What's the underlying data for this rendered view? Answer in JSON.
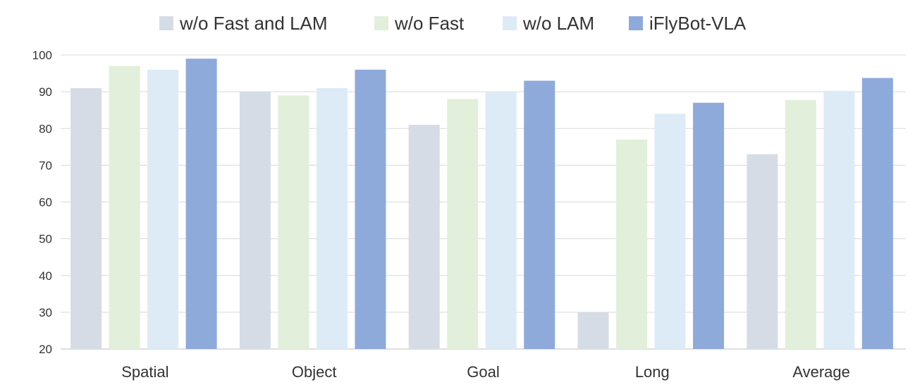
{
  "chart_data": {
    "type": "bar",
    "categories": [
      "Spatial",
      "Object",
      "Goal",
      "Long",
      "Average"
    ],
    "series": [
      {
        "name": "w/o Fast and LAM",
        "color": "#d6dce6",
        "values": [
          91,
          90,
          81,
          30,
          73
        ]
      },
      {
        "name": "w/o Fast",
        "color": "#e2efda",
        "values": [
          97,
          89,
          88,
          77,
          87.75
        ]
      },
      {
        "name": "w/o LAM",
        "color": "#ddebf7",
        "values": [
          96,
          91,
          90,
          84,
          90.25
        ]
      },
      {
        "name": "iFlyBot-VLA",
        "color": "#8eaadb",
        "values": [
          99,
          96,
          93,
          87,
          93.75
        ]
      }
    ],
    "ylim": [
      20,
      100
    ],
    "yticks": [
      20,
      30,
      40,
      50,
      60,
      70,
      80,
      90,
      100
    ],
    "grid": true,
    "legend_position": "top"
  }
}
